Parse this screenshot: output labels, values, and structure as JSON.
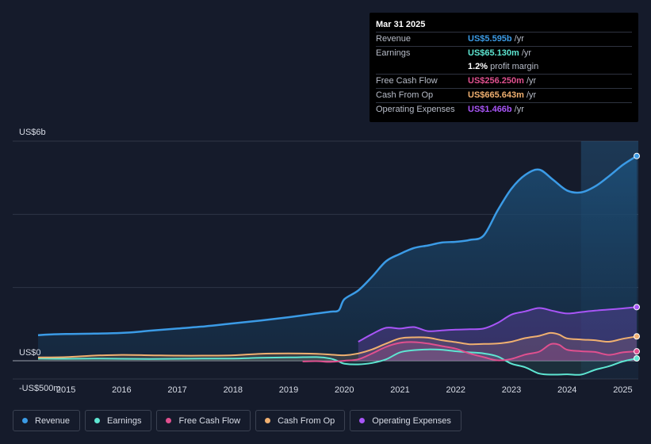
{
  "tooltip": {
    "date": "Mar 31 2025",
    "rows": [
      {
        "label": "Revenue",
        "value": "US$5.595b",
        "unit": "/yr",
        "color": "#3b9be6"
      },
      {
        "label": "Earnings",
        "value": "US$65.130m",
        "unit": "/yr",
        "color": "#5ee6d2"
      },
      {
        "label": "",
        "value": "1.2%",
        "unit": "profit margin",
        "color": "#ffffff"
      },
      {
        "label": "Free Cash Flow",
        "value": "US$256.250m",
        "unit": "/yr",
        "color": "#e0508f"
      },
      {
        "label": "Cash From Op",
        "value": "US$665.643m",
        "unit": "/yr",
        "color": "#f0b070"
      },
      {
        "label": "Operating Expenses",
        "value": "US$1.466b",
        "unit": "/yr",
        "color": "#a855f7"
      }
    ]
  },
  "chart_data": {
    "type": "area",
    "y_unit": "US$ millions",
    "ylim": [
      -500,
      6000
    ],
    "y_tick_labels": [
      {
        "value": 6000,
        "label": "US$6b"
      },
      {
        "value": 0,
        "label": "US$0"
      },
      {
        "value": -500,
        "label": "-US$500m"
      }
    ],
    "x_tick_labels": [
      "2015",
      "2016",
      "2017",
      "2018",
      "2019",
      "2020",
      "2021",
      "2022",
      "2023",
      "2024",
      "2025"
    ],
    "x_tick_values": [
      2015,
      2016,
      2017,
      2018,
      2019,
      2020,
      2021,
      2022,
      2023,
      2024,
      2025
    ],
    "xlim": [
      2014.5,
      2025.25
    ],
    "forecast_start": 2024.25,
    "series": [
      {
        "name": "Revenue",
        "color": "#3b9be6",
        "points": [
          [
            2014.5,
            700
          ],
          [
            2014.75,
            720
          ],
          [
            2015,
            730
          ],
          [
            2015.5,
            740
          ],
          [
            2016,
            760
          ],
          [
            2016.3,
            790
          ],
          [
            2016.5,
            820
          ],
          [
            2017,
            880
          ],
          [
            2017.5,
            940
          ],
          [
            2018,
            1020
          ],
          [
            2018.5,
            1100
          ],
          [
            2019,
            1190
          ],
          [
            2019.5,
            1290
          ],
          [
            2019.75,
            1340
          ],
          [
            2019.9,
            1380
          ],
          [
            2020.0,
            1680
          ],
          [
            2020.25,
            1920
          ],
          [
            2020.5,
            2300
          ],
          [
            2020.75,
            2720
          ],
          [
            2021,
            2920
          ],
          [
            2021.25,
            3080
          ],
          [
            2021.5,
            3150
          ],
          [
            2021.75,
            3230
          ],
          [
            2022,
            3250
          ],
          [
            2022.25,
            3300
          ],
          [
            2022.5,
            3420
          ],
          [
            2022.75,
            4100
          ],
          [
            2023,
            4700
          ],
          [
            2023.25,
            5080
          ],
          [
            2023.5,
            5220
          ],
          [
            2023.75,
            4940
          ],
          [
            2024,
            4650
          ],
          [
            2024.25,
            4600
          ],
          [
            2024.5,
            4760
          ],
          [
            2024.75,
            5040
          ],
          [
            2025.0,
            5350
          ],
          [
            2025.25,
            5595
          ]
        ]
      },
      {
        "name": "Earnings",
        "color": "#5ee6d2",
        "points": [
          [
            2014.5,
            60
          ],
          [
            2015,
            55
          ],
          [
            2015.5,
            60
          ],
          [
            2016,
            55
          ],
          [
            2016.5,
            50
          ],
          [
            2017,
            55
          ],
          [
            2017.5,
            60
          ],
          [
            2018,
            60
          ],
          [
            2018.5,
            80
          ],
          [
            2019,
            90
          ],
          [
            2019.5,
            100
          ],
          [
            2019.75,
            60
          ],
          [
            2019.9,
            -20
          ],
          [
            2020,
            -80
          ],
          [
            2020.25,
            -100
          ],
          [
            2020.5,
            -60
          ],
          [
            2020.75,
            40
          ],
          [
            2021,
            230
          ],
          [
            2021.25,
            290
          ],
          [
            2021.5,
            310
          ],
          [
            2021.75,
            300
          ],
          [
            2022,
            260
          ],
          [
            2022.25,
            230
          ],
          [
            2022.5,
            200
          ],
          [
            2022.75,
            120
          ],
          [
            2023,
            -80
          ],
          [
            2023.25,
            -180
          ],
          [
            2023.5,
            -350
          ],
          [
            2023.75,
            -380
          ],
          [
            2024,
            -370
          ],
          [
            2024.25,
            -380
          ],
          [
            2024.5,
            -250
          ],
          [
            2024.75,
            -150
          ],
          [
            2025.0,
            -20
          ],
          [
            2025.25,
            65
          ]
        ]
      },
      {
        "name": "Free Cash Flow",
        "color": "#e0508f",
        "points": [
          [
            2019.25,
            -20
          ],
          [
            2019.5,
            -10
          ],
          [
            2019.75,
            -30
          ],
          [
            2020,
            0
          ],
          [
            2020.25,
            40
          ],
          [
            2020.5,
            200
          ],
          [
            2020.75,
            380
          ],
          [
            2021,
            490
          ],
          [
            2021.25,
            510
          ],
          [
            2021.5,
            470
          ],
          [
            2021.75,
            400
          ],
          [
            2022,
            330
          ],
          [
            2022.25,
            200
          ],
          [
            2022.5,
            100
          ],
          [
            2022.75,
            10
          ],
          [
            2023,
            50
          ],
          [
            2023.25,
            170
          ],
          [
            2023.5,
            250
          ],
          [
            2023.7,
            450
          ],
          [
            2023.85,
            440
          ],
          [
            2024,
            300
          ],
          [
            2024.25,
            260
          ],
          [
            2024.5,
            240
          ],
          [
            2024.75,
            160
          ],
          [
            2025.0,
            230
          ],
          [
            2025.25,
            256
          ]
        ]
      },
      {
        "name": "Cash From Op",
        "color": "#f0b070",
        "points": [
          [
            2014.5,
            90
          ],
          [
            2015,
            100
          ],
          [
            2015.5,
            140
          ],
          [
            2016,
            160
          ],
          [
            2016.5,
            150
          ],
          [
            2017,
            140
          ],
          [
            2017.5,
            140
          ],
          [
            2018,
            150
          ],
          [
            2018.5,
            190
          ],
          [
            2019,
            200
          ],
          [
            2019.5,
            190
          ],
          [
            2019.75,
            170
          ],
          [
            2020,
            150
          ],
          [
            2020.25,
            200
          ],
          [
            2020.5,
            310
          ],
          [
            2020.75,
            470
          ],
          [
            2021,
            610
          ],
          [
            2021.25,
            640
          ],
          [
            2021.5,
            630
          ],
          [
            2021.75,
            560
          ],
          [
            2022,
            510
          ],
          [
            2022.25,
            450
          ],
          [
            2022.5,
            460
          ],
          [
            2022.75,
            470
          ],
          [
            2023,
            520
          ],
          [
            2023.25,
            620
          ],
          [
            2023.5,
            680
          ],
          [
            2023.7,
            760
          ],
          [
            2023.85,
            720
          ],
          [
            2024,
            610
          ],
          [
            2024.25,
            580
          ],
          [
            2024.5,
            560
          ],
          [
            2024.75,
            520
          ],
          [
            2025.0,
            600
          ],
          [
            2025.25,
            666
          ]
        ]
      },
      {
        "name": "Operating Expenses",
        "color": "#a855f7",
        "points": [
          [
            2020.25,
            520
          ],
          [
            2020.5,
            730
          ],
          [
            2020.75,
            900
          ],
          [
            2021,
            880
          ],
          [
            2021.25,
            920
          ],
          [
            2021.5,
            810
          ],
          [
            2021.75,
            830
          ],
          [
            2022,
            850
          ],
          [
            2022.25,
            860
          ],
          [
            2022.5,
            880
          ],
          [
            2022.75,
            1030
          ],
          [
            2023,
            1260
          ],
          [
            2023.25,
            1350
          ],
          [
            2023.5,
            1440
          ],
          [
            2023.75,
            1360
          ],
          [
            2024,
            1290
          ],
          [
            2024.25,
            1330
          ],
          [
            2024.5,
            1370
          ],
          [
            2024.75,
            1400
          ],
          [
            2025.0,
            1430
          ],
          [
            2025.25,
            1466
          ]
        ]
      }
    ]
  },
  "legend": [
    {
      "label": "Revenue",
      "color": "#3b9be6"
    },
    {
      "label": "Earnings",
      "color": "#5ee6d2"
    },
    {
      "label": "Free Cash Flow",
      "color": "#e0508f"
    },
    {
      "label": "Cash From Op",
      "color": "#f0b070"
    },
    {
      "label": "Operating Expenses",
      "color": "#a855f7"
    }
  ]
}
